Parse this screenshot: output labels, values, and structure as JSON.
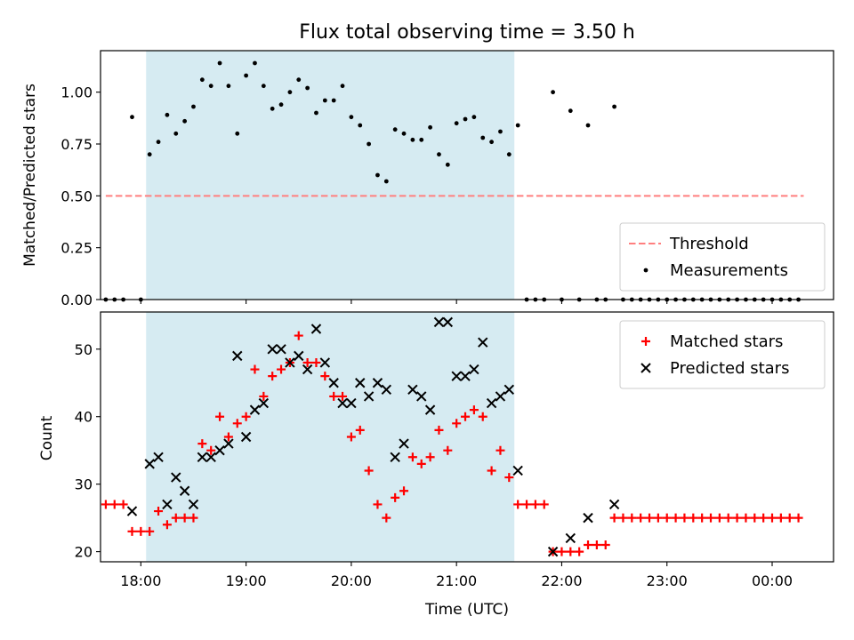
{
  "chart_data": [
    {
      "type": "scatter",
      "title": "Flux total observing time = 3.50 h",
      "xlabel": "",
      "ylabel": "Matched/Predicted stars",
      "xlim": [
        "17:37",
        "00:35"
      ],
      "ylim": [
        0,
        1.2
      ],
      "yticks": [
        "0.00",
        "0.25",
        "0.50",
        "0.75",
        "1.00"
      ],
      "shaded_interval": [
        "18:03",
        "21:33"
      ],
      "legend_position": "lower right",
      "series": [
        {
          "name": "Threshold",
          "style": "dashed-line",
          "color": "#ff7f7f",
          "points": [
            [
              "17:40",
              0.5
            ],
            [
              "23:59",
              0.5
            ],
            [
              "00:18",
              0.5
            ]
          ]
        },
        {
          "name": "Measurements",
          "style": "dot",
          "color": "#000000",
          "points": [
            [
              "17:40",
              0.0
            ],
            [
              "17:45",
              0.0
            ],
            [
              "17:50",
              0.0
            ],
            [
              "17:55",
              0.88
            ],
            [
              "18:00",
              0.0
            ],
            [
              "18:05",
              0.7
            ],
            [
              "18:10",
              0.76
            ],
            [
              "18:15",
              0.89
            ],
            [
              "18:20",
              0.8
            ],
            [
              "18:25",
              0.86
            ],
            [
              "18:30",
              0.93
            ],
            [
              "18:35",
              1.06
            ],
            [
              "18:40",
              1.03
            ],
            [
              "18:45",
              1.14
            ],
            [
              "18:50",
              1.03
            ],
            [
              "18:55",
              0.8
            ],
            [
              "19:00",
              1.08
            ],
            [
              "19:05",
              1.14
            ],
            [
              "19:10",
              1.03
            ],
            [
              "19:15",
              0.92
            ],
            [
              "19:20",
              0.94
            ],
            [
              "19:25",
              1.0
            ],
            [
              "19:30",
              1.06
            ],
            [
              "19:35",
              1.02
            ],
            [
              "19:40",
              0.9
            ],
            [
              "19:45",
              0.96
            ],
            [
              "19:50",
              0.96
            ],
            [
              "19:55",
              1.03
            ],
            [
              "20:00",
              0.88
            ],
            [
              "20:05",
              0.84
            ],
            [
              "20:10",
              0.75
            ],
            [
              "20:15",
              0.6
            ],
            [
              "20:20",
              0.57
            ],
            [
              "20:25",
              0.82
            ],
            [
              "20:30",
              0.8
            ],
            [
              "20:35",
              0.77
            ],
            [
              "20:40",
              0.77
            ],
            [
              "20:45",
              0.83
            ],
            [
              "20:50",
              0.7
            ],
            [
              "20:55",
              0.65
            ],
            [
              "21:00",
              0.85
            ],
            [
              "21:05",
              0.87
            ],
            [
              "21:10",
              0.88
            ],
            [
              "21:15",
              0.78
            ],
            [
              "21:20",
              0.76
            ],
            [
              "21:25",
              0.81
            ],
            [
              "21:30",
              0.7
            ],
            [
              "21:35",
              0.84
            ],
            [
              "21:40",
              0.0
            ],
            [
              "21:45",
              0.0
            ],
            [
              "21:50",
              0.0
            ],
            [
              "21:55",
              1.0
            ],
            [
              "22:00",
              0.0
            ],
            [
              "22:05",
              0.91
            ],
            [
              "22:10",
              0.0
            ],
            [
              "22:15",
              0.84
            ],
            [
              "22:20",
              0.0
            ],
            [
              "22:25",
              0.0
            ],
            [
              "22:30",
              0.93
            ],
            [
              "22:35",
              0.0
            ],
            [
              "22:40",
              0.0
            ],
            [
              "22:45",
              0.0
            ],
            [
              "22:50",
              0.0
            ],
            [
              "22:55",
              0.0
            ],
            [
              "23:00",
              0.0
            ],
            [
              "23:05",
              0.0
            ],
            [
              "23:10",
              0.0
            ],
            [
              "23:15",
              0.0
            ],
            [
              "23:20",
              0.0
            ],
            [
              "23:25",
              0.0
            ],
            [
              "23:30",
              0.0
            ],
            [
              "23:35",
              0.0
            ],
            [
              "23:40",
              0.0
            ],
            [
              "23:45",
              0.0
            ],
            [
              "23:50",
              0.0
            ],
            [
              "23:55",
              0.0
            ],
            [
              "00:00",
              0.0
            ],
            [
              "00:05",
              0.0
            ],
            [
              "00:10",
              0.0
            ],
            [
              "00:15",
              0.0
            ]
          ]
        }
      ]
    },
    {
      "type": "scatter",
      "xlabel": "Time (UTC)",
      "ylabel": "Count",
      "xlim": [
        "17:37",
        "00:35"
      ],
      "ylim": [
        18.5,
        55.5
      ],
      "yticks": [
        "20",
        "30",
        "40",
        "50"
      ],
      "xticks": [
        "18:00",
        "19:00",
        "20:00",
        "21:00",
        "22:00",
        "23:00",
        "00:00"
      ],
      "shaded_interval": [
        "18:03",
        "21:33"
      ],
      "legend_position": "upper right",
      "series": [
        {
          "name": "Matched stars",
          "style": "plus",
          "color": "#ff0000",
          "points": [
            [
              "17:40",
              27
            ],
            [
              "17:45",
              27
            ],
            [
              "17:50",
              27
            ],
            [
              "17:55",
              23
            ],
            [
              "18:00",
              23
            ],
            [
              "18:05",
              23
            ],
            [
              "18:10",
              26
            ],
            [
              "18:15",
              24
            ],
            [
              "18:20",
              25
            ],
            [
              "18:25",
              25
            ],
            [
              "18:30",
              25
            ],
            [
              "18:35",
              36
            ],
            [
              "18:40",
              35
            ],
            [
              "18:45",
              40
            ],
            [
              "18:50",
              37
            ],
            [
              "18:55",
              39
            ],
            [
              "19:00",
              40
            ],
            [
              "19:05",
              47
            ],
            [
              "19:10",
              43
            ],
            [
              "19:15",
              46
            ],
            [
              "19:20",
              47
            ],
            [
              "19:25",
              48
            ],
            [
              "19:30",
              52
            ],
            [
              "19:35",
              48
            ],
            [
              "19:40",
              48
            ],
            [
              "19:45",
              46
            ],
            [
              "19:50",
              43
            ],
            [
              "19:55",
              43
            ],
            [
              "20:00",
              37
            ],
            [
              "20:05",
              38
            ],
            [
              "20:10",
              32
            ],
            [
              "20:15",
              27
            ],
            [
              "20:20",
              25
            ],
            [
              "20:25",
              28
            ],
            [
              "20:30",
              29
            ],
            [
              "20:35",
              34
            ],
            [
              "20:40",
              33
            ],
            [
              "20:45",
              34
            ],
            [
              "20:50",
              38
            ],
            [
              "20:55",
              35
            ],
            [
              "21:00",
              39
            ],
            [
              "21:05",
              40
            ],
            [
              "21:10",
              41
            ],
            [
              "21:15",
              40
            ],
            [
              "21:20",
              32
            ],
            [
              "21:25",
              35
            ],
            [
              "21:30",
              31
            ],
            [
              "21:35",
              27
            ],
            [
              "21:40",
              27
            ],
            [
              "21:45",
              27
            ],
            [
              "21:50",
              27
            ],
            [
              "21:55",
              20
            ],
            [
              "22:00",
              20
            ],
            [
              "22:05",
              20
            ],
            [
              "22:10",
              20
            ],
            [
              "22:15",
              21
            ],
            [
              "22:20",
              21
            ],
            [
              "22:25",
              21
            ],
            [
              "22:30",
              25
            ],
            [
              "22:35",
              25
            ],
            [
              "22:40",
              25
            ],
            [
              "22:45",
              25
            ],
            [
              "22:50",
              25
            ],
            [
              "22:55",
              25
            ],
            [
              "23:00",
              25
            ],
            [
              "23:05",
              25
            ],
            [
              "23:10",
              25
            ],
            [
              "23:15",
              25
            ],
            [
              "23:20",
              25
            ],
            [
              "23:25",
              25
            ],
            [
              "23:30",
              25
            ],
            [
              "23:35",
              25
            ],
            [
              "23:40",
              25
            ],
            [
              "23:45",
              25
            ],
            [
              "23:50",
              25
            ],
            [
              "23:55",
              25
            ],
            [
              "00:00",
              25
            ],
            [
              "00:05",
              25
            ],
            [
              "00:10",
              25
            ],
            [
              "00:15",
              25
            ]
          ]
        },
        {
          "name": "Predicted stars",
          "style": "x",
          "color": "#000000",
          "points": [
            [
              "17:55",
              26
            ],
            [
              "18:05",
              33
            ],
            [
              "18:10",
              34
            ],
            [
              "18:15",
              27
            ],
            [
              "18:20",
              31
            ],
            [
              "18:25",
              29
            ],
            [
              "18:30",
              27
            ],
            [
              "18:35",
              34
            ],
            [
              "18:40",
              34
            ],
            [
              "18:45",
              35
            ],
            [
              "18:50",
              36
            ],
            [
              "18:55",
              49
            ],
            [
              "19:00",
              37
            ],
            [
              "19:05",
              41
            ],
            [
              "19:10",
              42
            ],
            [
              "19:15",
              50
            ],
            [
              "19:20",
              50
            ],
            [
              "19:25",
              48
            ],
            [
              "19:30",
              49
            ],
            [
              "19:35",
              47
            ],
            [
              "19:40",
              53
            ],
            [
              "19:45",
              48
            ],
            [
              "19:50",
              45
            ],
            [
              "19:55",
              42
            ],
            [
              "20:00",
              42
            ],
            [
              "20:05",
              45
            ],
            [
              "20:10",
              43
            ],
            [
              "20:15",
              45
            ],
            [
              "20:20",
              44
            ],
            [
              "20:25",
              34
            ],
            [
              "20:30",
              36
            ],
            [
              "20:35",
              44
            ],
            [
              "20:40",
              43
            ],
            [
              "20:45",
              41
            ],
            [
              "20:50",
              54
            ],
            [
              "20:55",
              54
            ],
            [
              "21:00",
              46
            ],
            [
              "21:05",
              46
            ],
            [
              "21:10",
              47
            ],
            [
              "21:15",
              51
            ],
            [
              "21:20",
              42
            ],
            [
              "21:25",
              43
            ],
            [
              "21:30",
              44
            ],
            [
              "21:35",
              32
            ],
            [
              "21:55",
              20
            ],
            [
              "22:05",
              22
            ],
            [
              "22:15",
              25
            ],
            [
              "22:30",
              27
            ]
          ]
        }
      ]
    }
  ]
}
